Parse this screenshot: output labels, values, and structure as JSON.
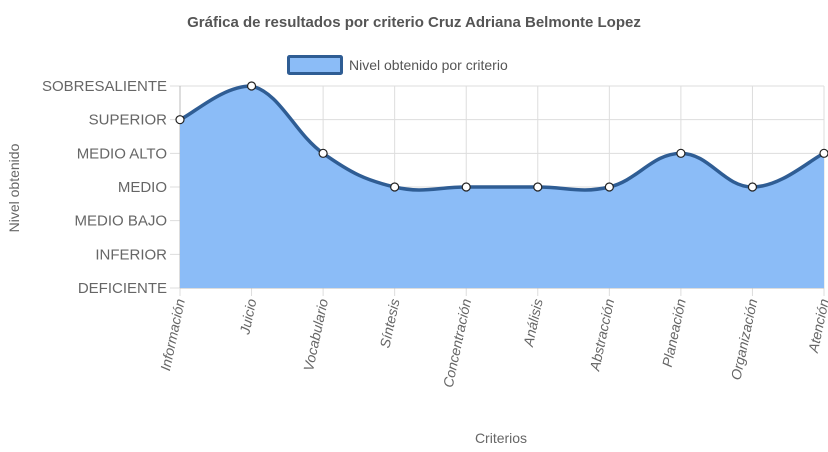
{
  "chart_data": {
    "type": "area",
    "title": "Gráfica de resultados por criterio Cruz Adriana Belmonte Lopez",
    "xlabel": "Criterios",
    "ylabel": "Nivel obtenido",
    "categories": [
      "Información",
      "Juicio",
      "Vocabulario",
      "Síntesis",
      "Concentración",
      "Análisis",
      "Abstracción",
      "Planeación",
      "Organización",
      "Atención"
    ],
    "y_levels": [
      "DEFICIENTE",
      "INFERIOR",
      "MEDIO BAJO",
      "MEDIO",
      "MEDIO ALTO",
      "SUPERIOR",
      "SOBRESALIENTE"
    ],
    "series": [
      {
        "name": "Nivel obtenido por criterio",
        "values": [
          6,
          7,
          5,
          4,
          4,
          4,
          4,
          5,
          4,
          5
        ],
        "value_labels": [
          "SUPERIOR",
          "SOBRESALIENTE",
          "MEDIO ALTO",
          "MEDIO",
          "MEDIO",
          "MEDIO",
          "MEDIO",
          "MEDIO ALTO",
          "MEDIO",
          "MEDIO ALTO"
        ]
      }
    ],
    "ylim": [
      1,
      7
    ],
    "grid": true,
    "legend_position": "top",
    "colors": {
      "fill": "#8bbcf7",
      "line": "#2f5d94",
      "point_fill": "#ffffff",
      "grid": "#dddddd",
      "legend_fill": "#8bbcf7",
      "legend_border": "#2f5d94"
    }
  }
}
